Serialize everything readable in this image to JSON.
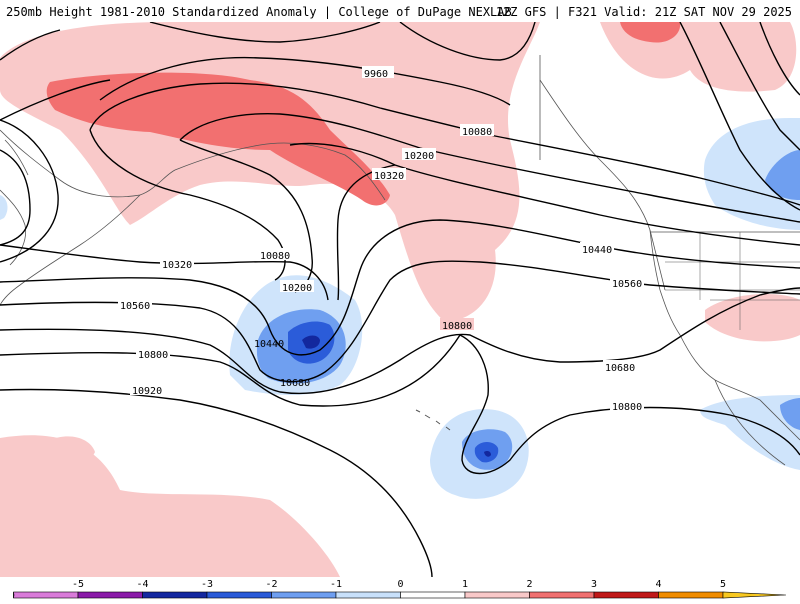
{
  "header": {
    "title_left": "250mb Height 1981-2010 Standardized Anomaly | College of DuPage NEXLAB",
    "title_right": "12Z GFS | F321 Valid: 21Z SAT NOV 29 2025"
  },
  "contour_labels": [
    {
      "id": "c9960",
      "text": "9960"
    },
    {
      "id": "c10080a",
      "text": "10080"
    },
    {
      "id": "c10200a",
      "text": "10200"
    },
    {
      "id": "c10320a",
      "text": "10320"
    },
    {
      "id": "c10080b",
      "text": "10080"
    },
    {
      "id": "c10200b",
      "text": "10200"
    },
    {
      "id": "c10320b",
      "text": "10320"
    },
    {
      "id": "c10440a",
      "text": "10440"
    },
    {
      "id": "c10440b",
      "text": "10440"
    },
    {
      "id": "c10560a",
      "text": "10560"
    },
    {
      "id": "c10560b",
      "text": "10560"
    },
    {
      "id": "c10680a",
      "text": "10680"
    },
    {
      "id": "c10680b",
      "text": "10680"
    },
    {
      "id": "c10800a",
      "text": "10800"
    },
    {
      "id": "c10800b",
      "text": "10800"
    },
    {
      "id": "c10800c",
      "text": "10800"
    },
    {
      "id": "c10920",
      "text": "10920"
    }
  ],
  "colorbar": {
    "ticks": [
      "-5",
      "-4",
      "-3",
      "-2",
      "-1",
      "0",
      "1",
      "2",
      "3",
      "4",
      "5"
    ],
    "colors": [
      "#d97bd9",
      "#8a1aa8",
      "#1428a0",
      "#2a5ad8",
      "#6e9ef0",
      "#c8e0fa",
      "#ffffff",
      "#f8c8c8",
      "#f07070",
      "#c01818",
      "#f08c00",
      "#f8c820"
    ]
  },
  "colors": {
    "pos1": "#f9c9c9",
    "pos2": "#f27070",
    "neg1": "#cfe4fb",
    "neg2": "#6f9ff0",
    "neg3": "#2b5cd9",
    "neg4": "#13289e"
  }
}
